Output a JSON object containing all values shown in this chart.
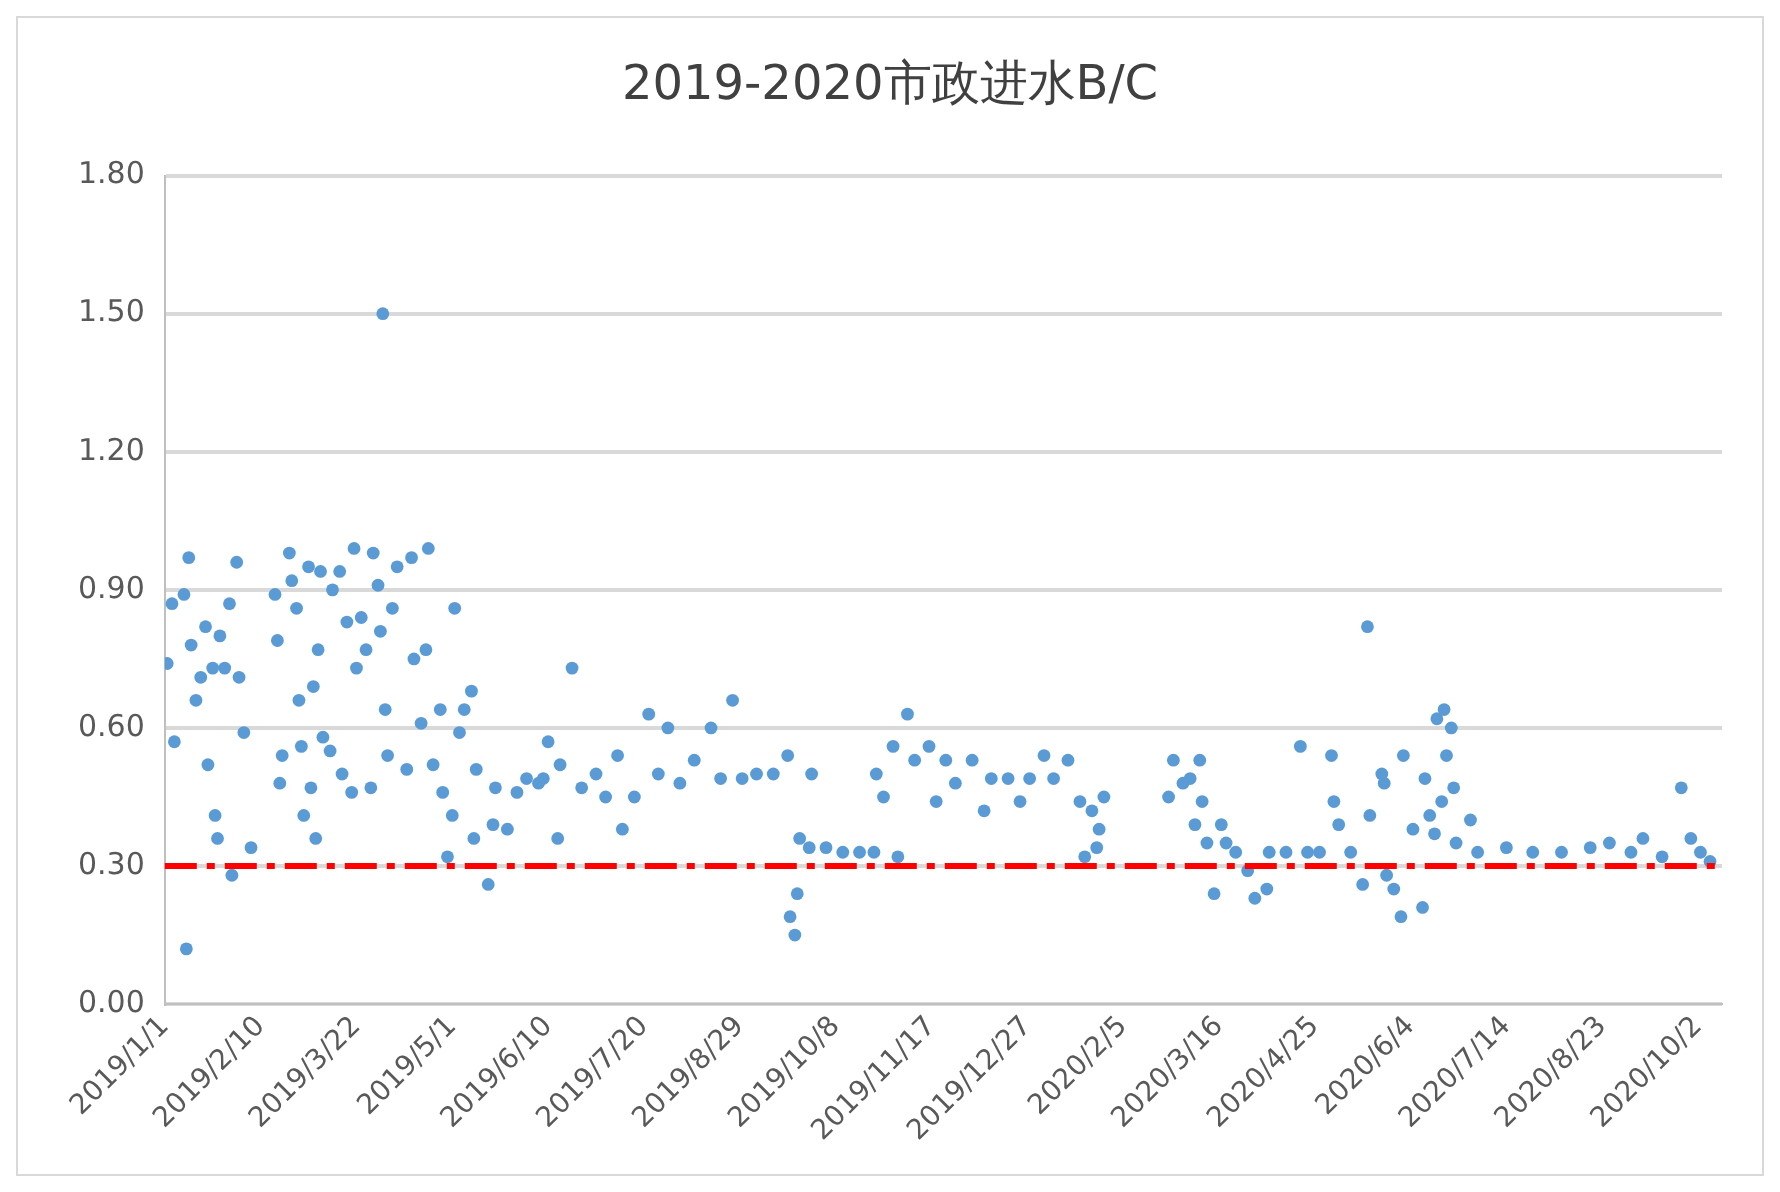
{
  "chart_data": {
    "type": "scatter",
    "title": "2019-2020市政进水B/C",
    "x": [
      "2019-01-02",
      "2019-01-04",
      "2019-01-05",
      "2019-01-09",
      "2019-01-10",
      "2019-01-11",
      "2019-01-12",
      "2019-01-14",
      "2019-01-16",
      "2019-01-18",
      "2019-01-19",
      "2019-01-21",
      "2019-01-22",
      "2019-01-23",
      "2019-01-24",
      "2019-01-26",
      "2019-01-28",
      "2019-01-29",
      "2019-01-31",
      "2019-02-01",
      "2019-02-03",
      "2019-02-06",
      "2019-02-16",
      "2019-02-17",
      "2019-02-18",
      "2019-02-19",
      "2019-02-22",
      "2019-02-23",
      "2019-02-25",
      "2019-02-26",
      "2019-02-27",
      "2019-02-28",
      "2019-03-02",
      "2019-03-03",
      "2019-03-04",
      "2019-03-05",
      "2019-03-06",
      "2019-03-07",
      "2019-03-08",
      "2019-03-11",
      "2019-03-12",
      "2019-03-15",
      "2019-03-16",
      "2019-03-18",
      "2019-03-20",
      "2019-03-21",
      "2019-03-22",
      "2019-03-24",
      "2019-03-26",
      "2019-03-28",
      "2019-03-29",
      "2019-03-31",
      "2019-04-01",
      "2019-04-02",
      "2019-04-03",
      "2019-04-04",
      "2019-04-06",
      "2019-04-08",
      "2019-04-12",
      "2019-04-14",
      "2019-04-15",
      "2019-04-18",
      "2019-04-20",
      "2019-04-21",
      "2019-04-23",
      "2019-04-26",
      "2019-04-27",
      "2019-04-29",
      "2019-05-01",
      "2019-05-02",
      "2019-05-04",
      "2019-05-06",
      "2019-05-09",
      "2019-05-10",
      "2019-05-11",
      "2019-05-16",
      "2019-05-18",
      "2019-05-19",
      "2019-05-24",
      "2019-05-28",
      "2019-06-01",
      "2019-06-06",
      "2019-06-08",
      "2019-06-10",
      "2019-06-14",
      "2019-06-15",
      "2019-06-20",
      "2019-06-24",
      "2019-06-30",
      "2019-07-04",
      "2019-07-09",
      "2019-07-11",
      "2019-07-16",
      "2019-07-22",
      "2019-07-26",
      "2019-07-30",
      "2019-08-04",
      "2019-08-10",
      "2019-08-17",
      "2019-08-21",
      "2019-08-26",
      "2019-08-30",
      "2019-09-05",
      "2019-09-12",
      "2019-09-18",
      "2019-09-19",
      "2019-09-21",
      "2019-09-22",
      "2019-09-23",
      "2019-09-27",
      "2019-09-28",
      "2019-10-04",
      "2019-10-11",
      "2019-10-18",
      "2019-10-24",
      "2019-10-25",
      "2019-10-28",
      "2019-11-01",
      "2019-11-03",
      "2019-11-07",
      "2019-11-10",
      "2019-11-16",
      "2019-11-19",
      "2019-11-23",
      "2019-11-27",
      "2019-12-04",
      "2019-12-09",
      "2019-12-12",
      "2019-12-19",
      "2019-12-24",
      "2019-12-28",
      "2020-01-03",
      "2020-01-07",
      "2020-01-13",
      "2020-01-18",
      "2020-01-20",
      "2020-01-23",
      "2020-01-25",
      "2020-01-26",
      "2020-01-28",
      "2020-02-24",
      "2020-02-26",
      "2020-03-01",
      "2020-03-04",
      "2020-03-06",
      "2020-03-08",
      "2020-03-09",
      "2020-03-11",
      "2020-03-14",
      "2020-03-17",
      "2020-03-19",
      "2020-03-23",
      "2020-03-28",
      "2020-03-31",
      "2020-04-05",
      "2020-04-06",
      "2020-04-13",
      "2020-04-19",
      "2020-04-22",
      "2020-04-27",
      "2020-05-02",
      "2020-05-03",
      "2020-05-05",
      "2020-05-10",
      "2020-05-15",
      "2020-05-17",
      "2020-05-18",
      "2020-05-23",
      "2020-05-24",
      "2020-05-25",
      "2020-05-28",
      "2020-05-31",
      "2020-06-01",
      "2020-06-05",
      "2020-06-09",
      "2020-06-10",
      "2020-06-12",
      "2020-06-14",
      "2020-06-15",
      "2020-06-17",
      "2020-06-18",
      "2020-06-19",
      "2020-06-21",
      "2020-06-22",
      "2020-06-23",
      "2020-06-29",
      "2020-07-02",
      "2020-07-14",
      "2020-07-25",
      "2020-08-06",
      "2020-08-18",
      "2020-08-26",
      "2020-09-04",
      "2020-09-09",
      "2020-09-17",
      "2020-09-25",
      "2020-09-29",
      "2020-10-03",
      "2020-10-07"
    ],
    "values": [
      0.74,
      0.87,
      0.57,
      0.89,
      0.12,
      0.97,
      0.78,
      0.66,
      0.71,
      0.82,
      0.52,
      0.73,
      0.41,
      0.36,
      0.8,
      0.73,
      0.87,
      0.28,
      0.96,
      0.71,
      0.59,
      0.34,
      0.89,
      0.79,
      0.48,
      0.54,
      0.98,
      0.92,
      0.86,
      0.66,
      0.56,
      0.41,
      0.95,
      0.47,
      0.69,
      0.36,
      0.77,
      0.94,
      0.58,
      0.55,
      0.9,
      0.94,
      0.5,
      0.83,
      0.46,
      0.99,
      0.73,
      0.84,
      0.77,
      0.47,
      0.98,
      0.91,
      0.81,
      1.5,
      0.64,
      0.54,
      0.86,
      0.95,
      0.51,
      0.97,
      0.75,
      0.61,
      0.77,
      0.99,
      0.52,
      0.64,
      0.46,
      0.32,
      0.41,
      0.86,
      0.59,
      0.64,
      0.68,
      0.36,
      0.51,
      0.26,
      0.39,
      0.47,
      0.38,
      0.46,
      0.49,
      0.48,
      0.49,
      0.57,
      0.36,
      0.52,
      0.73,
      0.47,
      0.5,
      0.45,
      0.54,
      0.38,
      0.45,
      0.63,
      0.5,
      0.6,
      0.48,
      0.53,
      0.6,
      0.49,
      0.66,
      0.49,
      0.5,
      0.5,
      0.54,
      0.19,
      0.15,
      0.24,
      0.36,
      0.34,
      0.5,
      0.34,
      0.33,
      0.33,
      0.33,
      0.5,
      0.45,
      0.56,
      0.32,
      0.63,
      0.53,
      0.56,
      0.44,
      0.53,
      0.48,
      0.53,
      0.42,
      0.49,
      0.49,
      0.44,
      0.49,
      0.54,
      0.49,
      0.53,
      0.44,
      0.32,
      0.42,
      0.34,
      0.38,
      0.45,
      0.45,
      0.53,
      0.48,
      0.49,
      0.39,
      0.53,
      0.44,
      0.35,
      0.24,
      0.39,
      0.35,
      0.33,
      0.29,
      0.23,
      0.25,
      0.33,
      0.33,
      0.56,
      0.33,
      0.33,
      0.54,
      0.44,
      0.39,
      0.33,
      0.26,
      0.82,
      0.41,
      0.5,
      0.48,
      0.28,
      0.25,
      0.19,
      0.54,
      0.38,
      0.21,
      0.49,
      0.41,
      0.37,
      0.62,
      0.44,
      0.64,
      0.54,
      0.6,
      0.47,
      0.35,
      0.4,
      0.33,
      0.34,
      0.33,
      0.33,
      0.34,
      0.35,
      0.33,
      0.36,
      0.32,
      0.47,
      0.36,
      0.33,
      0.31
    ],
    "color": "#5b9bd5",
    "marker": "circle",
    "xlim": [
      "2019-01-01",
      "2020-10-12"
    ],
    "xticks": [
      {
        "value": "2019-01-01",
        "label": "2019/1/1"
      },
      {
        "value": "2019-02-10",
        "label": "2019/2/10"
      },
      {
        "value": "2019-03-22",
        "label": "2019/3/22"
      },
      {
        "value": "2019-05-01",
        "label": "2019/5/1"
      },
      {
        "value": "2019-06-10",
        "label": "2019/6/10"
      },
      {
        "value": "2019-07-20",
        "label": "2019/7/20"
      },
      {
        "value": "2019-08-29",
        "label": "2019/8/29"
      },
      {
        "value": "2019-10-08",
        "label": "2019/10/8"
      },
      {
        "value": "2019-11-17",
        "label": "2019/11/17"
      },
      {
        "value": "2019-12-27",
        "label": "2019/12/27"
      },
      {
        "value": "2020-02-05",
        "label": "2020/2/5"
      },
      {
        "value": "2020-03-16",
        "label": "2020/3/16"
      },
      {
        "value": "2020-04-25",
        "label": "2020/4/25"
      },
      {
        "value": "2020-06-04",
        "label": "2020/6/4"
      },
      {
        "value": "2020-07-14",
        "label": "2020/7/14"
      },
      {
        "value": "2020-08-23",
        "label": "2020/8/23"
      },
      {
        "value": "2020-10-02",
        "label": "2020/10/2"
      }
    ],
    "ylim": [
      0,
      1.8
    ],
    "yticks": [
      {
        "value": 0,
        "label": "0.00"
      },
      {
        "value": 0.3,
        "label": "0.30"
      },
      {
        "value": 0.6,
        "label": "0.60"
      },
      {
        "value": 0.9,
        "label": "0.90"
      },
      {
        "value": 1.2,
        "label": "1.20"
      },
      {
        "value": 1.5,
        "label": "1.50"
      },
      {
        "value": 1.8,
        "label": "1.80"
      }
    ],
    "grid": "y",
    "ref_lines": [
      {
        "axis": "y",
        "value": 0.3,
        "color": "#ff0000",
        "line_style": "dashed"
      }
    ]
  }
}
